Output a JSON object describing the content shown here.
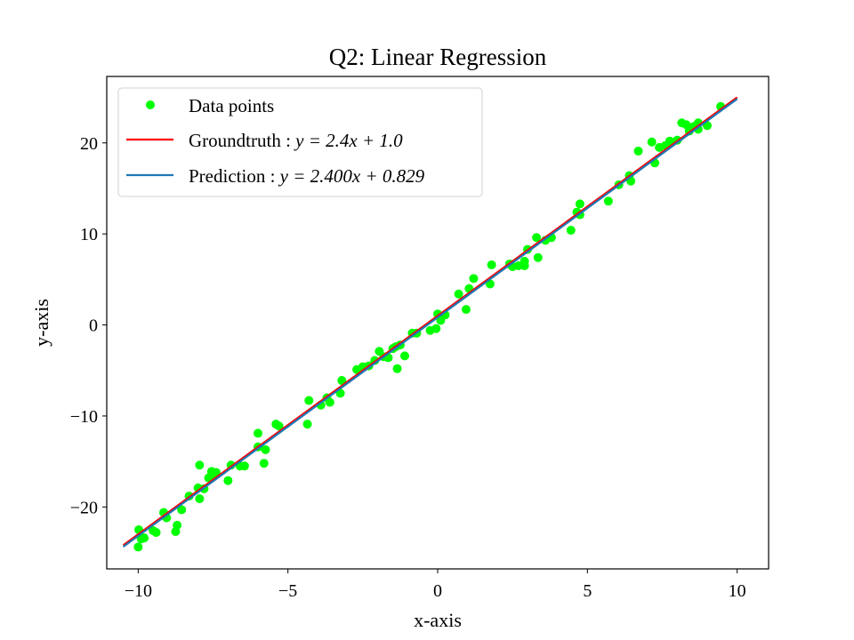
{
  "chart_data": {
    "type": "scatter",
    "title": "Q2: Linear Regression",
    "xlabel": "x-axis",
    "ylabel": "y-axis",
    "xlim": [
      -11.05,
      11.05
    ],
    "ylim": [
      -26.8,
      27.3
    ],
    "xticks": [
      -10,
      -5,
      0,
      5,
      10
    ],
    "xtick_labels": [
      "−10",
      "−5",
      "0",
      "5",
      "10"
    ],
    "yticks": [
      -20,
      -10,
      0,
      10,
      20
    ],
    "ytick_labels": [
      "−20",
      "−10",
      "0",
      "10",
      "20"
    ],
    "grid": false,
    "legend_position": "top-left",
    "series": [
      {
        "name": "Data points",
        "kind": "scatter",
        "color": "#00ff00",
        "points": [
          [
            -10.0,
            -24.4
          ],
          [
            -9.98,
            -22.5
          ],
          [
            -9.9,
            -23.5
          ],
          [
            -9.8,
            -23.4
          ],
          [
            -9.5,
            -22.6
          ],
          [
            -9.4,
            -22.8
          ],
          [
            -9.15,
            -20.6
          ],
          [
            -9.05,
            -21.2
          ],
          [
            -8.75,
            -22.7
          ],
          [
            -8.7,
            -22.0
          ],
          [
            -8.55,
            -20.3
          ],
          [
            -8.3,
            -18.8
          ],
          [
            -8.0,
            -17.9
          ],
          [
            -7.95,
            -19.1
          ],
          [
            -7.95,
            -15.4
          ],
          [
            -7.8,
            -18.0
          ],
          [
            -7.65,
            -16.8
          ],
          [
            -7.55,
            -16.1
          ],
          [
            -7.5,
            -16.4
          ],
          [
            -7.4,
            -16.2
          ],
          [
            -7.0,
            -17.1
          ],
          [
            -6.9,
            -15.4
          ],
          [
            -6.6,
            -15.5
          ],
          [
            -6.45,
            -15.5
          ],
          [
            -6.0,
            -11.9
          ],
          [
            -6.0,
            -13.4
          ],
          [
            -5.8,
            -15.2
          ],
          [
            -5.75,
            -13.7
          ],
          [
            -5.4,
            -10.9
          ],
          [
            -5.3,
            -11.1
          ],
          [
            -4.35,
            -10.9
          ],
          [
            -4.3,
            -8.3
          ],
          [
            -3.9,
            -8.8
          ],
          [
            -3.7,
            -8.0
          ],
          [
            -3.6,
            -8.5
          ],
          [
            -3.25,
            -7.5
          ],
          [
            -3.2,
            -6.1
          ],
          [
            -2.7,
            -4.9
          ],
          [
            -2.5,
            -4.6
          ],
          [
            -2.3,
            -4.5
          ],
          [
            -2.1,
            -3.9
          ],
          [
            -1.95,
            -2.9
          ],
          [
            -1.8,
            -3.5
          ],
          [
            -1.65,
            -3.6
          ],
          [
            -1.5,
            -2.6
          ],
          [
            -1.4,
            -2.4
          ],
          [
            -1.35,
            -4.8
          ],
          [
            -1.25,
            -2.2
          ],
          [
            -1.1,
            -3.4
          ],
          [
            -0.85,
            -0.9
          ],
          [
            -0.7,
            -0.9
          ],
          [
            -0.25,
            -0.6
          ],
          [
            -0.05,
            -0.4
          ],
          [
            0.0,
            1.2
          ],
          [
            0.1,
            0.5
          ],
          [
            0.25,
            1.1
          ],
          [
            0.7,
            3.4
          ],
          [
            0.95,
            1.7
          ],
          [
            1.05,
            4.0
          ],
          [
            1.2,
            5.1
          ],
          [
            1.75,
            4.5
          ],
          [
            1.8,
            6.6
          ],
          [
            2.4,
            6.7
          ],
          [
            2.5,
            6.4
          ],
          [
            2.7,
            6.5
          ],
          [
            2.9,
            7.0
          ],
          [
            2.9,
            6.5
          ],
          [
            3.0,
            8.3
          ],
          [
            3.3,
            9.6
          ],
          [
            3.35,
            7.4
          ],
          [
            3.6,
            9.3
          ],
          [
            3.8,
            9.6
          ],
          [
            4.45,
            10.4
          ],
          [
            4.65,
            12.4
          ],
          [
            4.75,
            13.3
          ],
          [
            4.75,
            12.1
          ],
          [
            5.7,
            13.6
          ],
          [
            6.05,
            15.4
          ],
          [
            6.4,
            16.4
          ],
          [
            6.45,
            15.8
          ],
          [
            6.7,
            19.1
          ],
          [
            7.15,
            20.1
          ],
          [
            7.25,
            17.8
          ],
          [
            7.4,
            19.5
          ],
          [
            7.6,
            19.7
          ],
          [
            7.75,
            20.2
          ],
          [
            8.0,
            20.3
          ],
          [
            8.15,
            22.2
          ],
          [
            8.3,
            22.0
          ],
          [
            8.4,
            21.3
          ],
          [
            8.55,
            21.8
          ],
          [
            8.7,
            22.2
          ],
          [
            8.7,
            21.5
          ],
          [
            9.0,
            21.9
          ],
          [
            9.45,
            24.0
          ]
        ]
      },
      {
        "name": "Groundtruth : y = 2.4x + 1.0",
        "kind": "line",
        "color": "#ff0000",
        "slope": 2.4,
        "intercept": 1.0,
        "x": [
          -10.5,
          10.0
        ]
      },
      {
        "name": "Prediction : y = 2.400x + 0.829",
        "kind": "line",
        "color": "#1f77b4",
        "slope": 2.4,
        "intercept": 0.829,
        "x": [
          -10.5,
          10.0
        ]
      }
    ]
  },
  "legend": {
    "data_points": "Data points",
    "groundtruth_prefix": "Groundtruth :",
    "groundtruth_eq": "y = 2.4x + 1.0",
    "prediction_prefix": "Prediction :",
    "prediction_eq": "y = 2.400x + 0.829"
  }
}
